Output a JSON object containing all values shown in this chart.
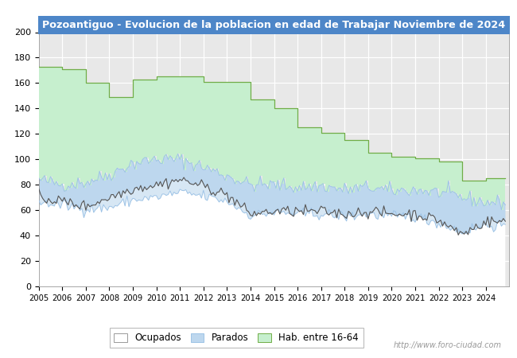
{
  "title": "Pozoantiguo - Evolucion de la poblacion en edad de Trabajar Noviembre de 2024",
  "title_bg": "#4d86c8",
  "title_color": "#ffffff",
  "ylim": [
    0,
    200
  ],
  "yticks": [
    0,
    20,
    40,
    60,
    80,
    100,
    120,
    140,
    160,
    180,
    200
  ],
  "hab_16_64_annual": {
    "2005": 173,
    "2006": 171,
    "2007": 160,
    "2008": 149,
    "2009": 163,
    "2010": 165,
    "2011": 165,
    "2012": 161,
    "2013": 161,
    "2014": 147,
    "2015": 140,
    "2016": 125,
    "2017": 121,
    "2018": 115,
    "2019": 105,
    "2020": 102,
    "2021": 101,
    "2022": 98,
    "2023": 83,
    "2024": 85
  },
  "parados_upper_annual": {
    "2005": 84,
    "2006": 80,
    "2007": 82,
    "2008": 88,
    "2009": 97,
    "2010": 100,
    "2011": 100,
    "2012": 94,
    "2013": 87,
    "2014": 80,
    "2015": 80,
    "2016": 78,
    "2017": 79,
    "2018": 76,
    "2019": 78,
    "2020": 75,
    "2021": 76,
    "2022": 74,
    "2023": 70,
    "2024": 66
  },
  "parados_lower_annual": {
    "2005": 66,
    "2006": 64,
    "2007": 61,
    "2008": 62,
    "2009": 68,
    "2010": 70,
    "2011": 74,
    "2012": 71,
    "2013": 67,
    "2014": 56,
    "2015": 58,
    "2016": 57,
    "2017": 57,
    "2018": 55,
    "2019": 57,
    "2020": 55,
    "2021": 55,
    "2022": 50,
    "2023": 43,
    "2024": 48
  },
  "ocupados_annual": {
    "2005": 70,
    "2006": 67,
    "2007": 63,
    "2008": 70,
    "2009": 77,
    "2010": 80,
    "2011": 84,
    "2012": 79,
    "2013": 72,
    "2014": 57,
    "2015": 59,
    "2016": 59,
    "2017": 59,
    "2018": 57,
    "2019": 59,
    "2020": 57,
    "2021": 57,
    "2022": 52,
    "2023": 41,
    "2024": 51
  },
  "color_hab": "#c6efce",
  "color_hab_line": "#70ad47",
  "color_parados_fill": "#bdd7ee",
  "color_parados_line": "#9dc3e6",
  "color_ocupados_fill": "#e8e8e8",
  "color_ocupados_line": "#555555",
  "watermark": "http://www.foro-ciudad.com",
  "background_color": "#ffffff",
  "plot_bg": "#e8e8e8"
}
